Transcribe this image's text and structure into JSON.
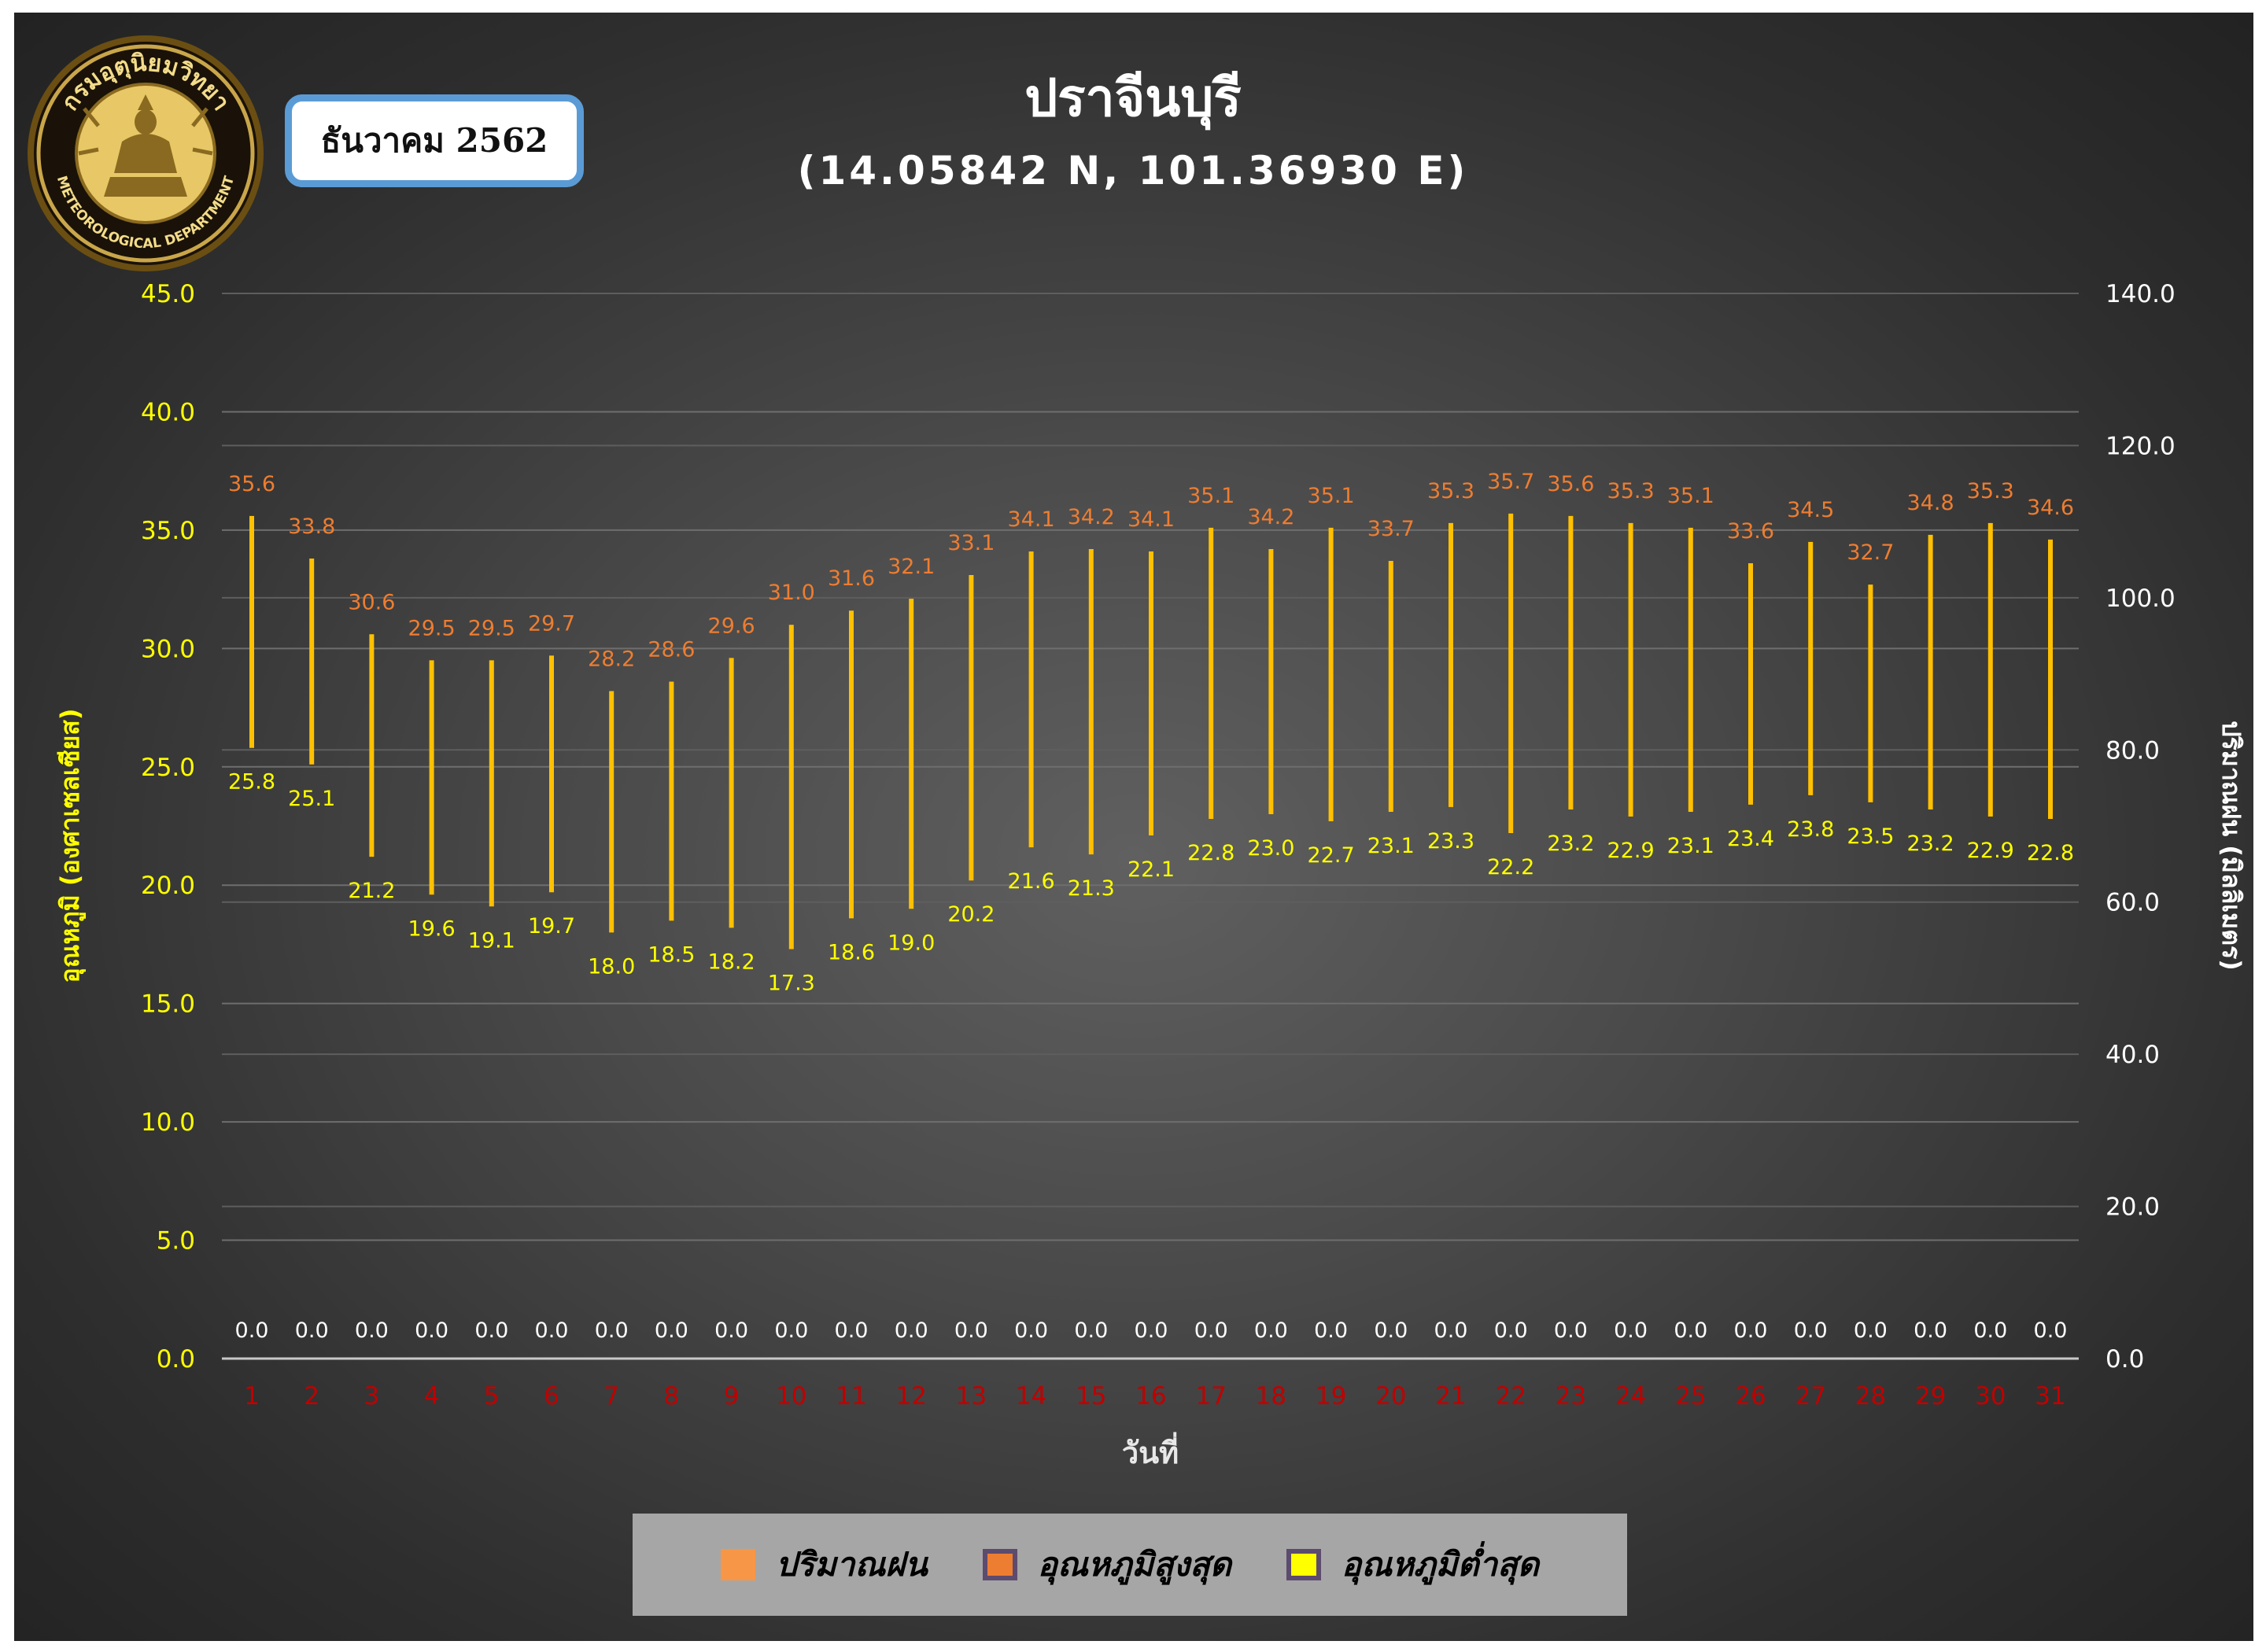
{
  "header": {
    "title": "ปราจีนบุรี",
    "coordinates": "(14.05842 N, 101.36930 E)",
    "month": "ธันวาคม 2562"
  },
  "logo": {
    "text_top": "กรมอุตุนิยมวิทยา",
    "text_bottom": "METEOROLOGICAL DEPARTMENT"
  },
  "colors": {
    "background": "#3f3f3f",
    "bar": "#ffc000",
    "max_label": "#ed7d31",
    "min_label": "#ffff00",
    "rain_label": "#ffffff",
    "left_axis": "#ffff00",
    "right_axis": "#ffffff",
    "x_tick": "#c00000",
    "legend_bg": "#a6a6a6"
  },
  "legend": [
    {
      "label": "ปริมาณฝน",
      "color": "#f79646",
      "border": "#f79646"
    },
    {
      "label": "อุณหภูมิสูงสุด",
      "color": "#ed7d31",
      "border": "#5c4b6e"
    },
    {
      "label": "อุณหภูมิต่ำสุด",
      "color": "#ffff00",
      "border": "#5c4b6e"
    }
  ],
  "chart_data": {
    "type": "bar",
    "xlabel": "วันที่",
    "ylabel": "อุณหภูมิ (องศาเซลเซียส)",
    "y2label": "ปริมาณฝน (มิลลิเมตร)",
    "ylim": [
      0,
      45
    ],
    "y2lim": [
      0,
      140
    ],
    "yticks": [
      "0.0",
      "5.0",
      "10.0",
      "15.0",
      "20.0",
      "25.0",
      "30.0",
      "35.0",
      "40.0",
      "45.0"
    ],
    "y2ticks": [
      "0.0",
      "20.0",
      "40.0",
      "60.0",
      "80.0",
      "100.0",
      "120.0",
      "140.0"
    ],
    "grid": true,
    "legend_position": "bottom",
    "categories": [
      "1",
      "2",
      "3",
      "4",
      "5",
      "6",
      "7",
      "8",
      "9",
      "10",
      "11",
      "12",
      "13",
      "14",
      "15",
      "16",
      "17",
      "18",
      "19",
      "20",
      "21",
      "22",
      "23",
      "24",
      "25",
      "26",
      "27",
      "28",
      "29",
      "30",
      "31"
    ],
    "series": [
      {
        "name": "อุณหภูมิสูงสุด",
        "values": [
          35.6,
          33.8,
          30.6,
          29.5,
          29.5,
          29.7,
          28.2,
          28.6,
          29.6,
          31.0,
          31.6,
          32.1,
          33.1,
          34.1,
          34.2,
          34.1,
          35.1,
          34.2,
          35.1,
          33.7,
          35.3,
          35.7,
          35.6,
          35.3,
          35.1,
          33.6,
          34.5,
          32.7,
          34.8,
          35.3,
          34.6
        ]
      },
      {
        "name": "อุณหภูมิต่ำสุด",
        "values": [
          25.8,
          25.1,
          21.2,
          19.6,
          19.1,
          19.7,
          18.0,
          18.5,
          18.2,
          17.3,
          18.6,
          19.0,
          20.2,
          21.6,
          21.3,
          22.1,
          22.8,
          23.0,
          22.7,
          23.1,
          23.3,
          22.2,
          23.2,
          22.9,
          23.1,
          23.4,
          23.8,
          23.5,
          23.2,
          22.9,
          22.8
        ]
      },
      {
        "name": "ปริมาณฝน",
        "values": [
          0.0,
          0.0,
          0.0,
          0.0,
          0.0,
          0.0,
          0.0,
          0.0,
          0.0,
          0.0,
          0.0,
          0.0,
          0.0,
          0.0,
          0.0,
          0.0,
          0.0,
          0.0,
          0.0,
          0.0,
          0.0,
          0.0,
          0.0,
          0.0,
          0.0,
          0.0,
          0.0,
          0.0,
          0.0,
          0.0,
          0.0
        ]
      }
    ]
  }
}
